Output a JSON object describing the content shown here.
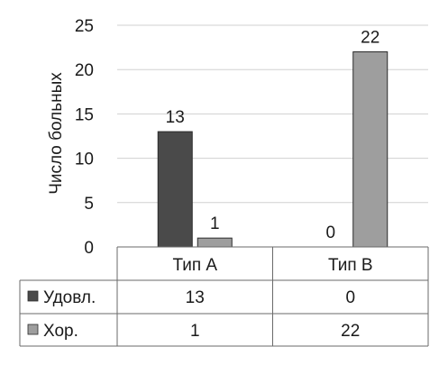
{
  "chart_data": {
    "type": "bar",
    "categories": [
      "Тип А",
      "Тип В"
    ],
    "series": [
      {
        "name": "Удовл.",
        "values": [
          13,
          0
        ],
        "color": "#4a4a4a"
      },
      {
        "name": "Хор.",
        "values": [
          1,
          22
        ],
        "color": "#9e9e9e"
      }
    ],
    "ylabel": "Число больных",
    "ylim": [
      0,
      25
    ],
    "yticks": [
      0,
      5,
      10,
      15,
      20,
      25
    ],
    "grid": true,
    "legend": "data-table",
    "data_table": true
  }
}
